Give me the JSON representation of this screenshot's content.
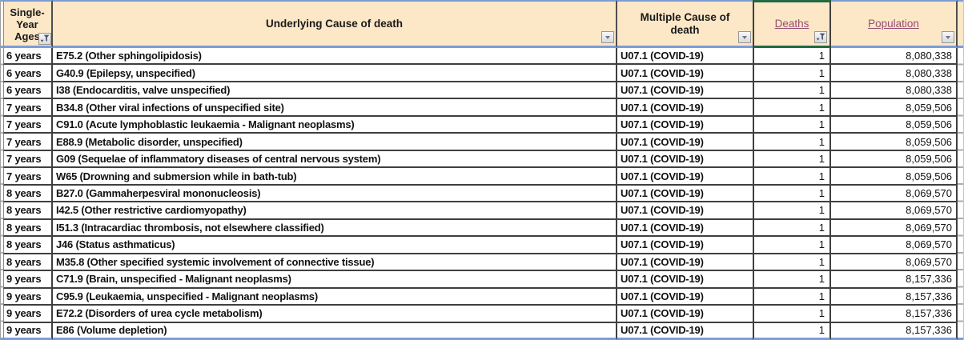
{
  "table": {
    "headers": [
      {
        "label": "Single-Year Ages",
        "filter": "applied",
        "hyperlink": false
      },
      {
        "label": "Underlying Cause of death",
        "filter": "dropdown",
        "hyperlink": false
      },
      {
        "label": "Multiple Cause of death",
        "filter": "dropdown",
        "hyperlink": false
      },
      {
        "label": "Deaths",
        "filter": "applied",
        "hyperlink": true
      },
      {
        "label": "Population",
        "filter": "dropdown",
        "hyperlink": true
      }
    ],
    "rows": [
      {
        "age": "6 years",
        "underlying_cause": "E75.2 (Other sphingolipidosis)",
        "multiple_cause": "U07.1 (COVID-19)",
        "deaths": "1",
        "population": "8,080,338"
      },
      {
        "age": "6 years",
        "underlying_cause": "G40.9 (Epilepsy, unspecified)",
        "multiple_cause": "U07.1 (COVID-19)",
        "deaths": "1",
        "population": "8,080,338"
      },
      {
        "age": "6 years",
        "underlying_cause": "I38 (Endocarditis, valve unspecified)",
        "multiple_cause": "U07.1 (COVID-19)",
        "deaths": "1",
        "population": "8,080,338"
      },
      {
        "age": "7 years",
        "underlying_cause": "B34.8 (Other viral infections of unspecified site)",
        "multiple_cause": "U07.1 (COVID-19)",
        "deaths": "1",
        "population": "8,059,506"
      },
      {
        "age": "7 years",
        "underlying_cause": "C91.0 (Acute lymphoblastic leukaemia - Malignant neoplasms)",
        "multiple_cause": "U07.1 (COVID-19)",
        "deaths": "1",
        "population": "8,059,506"
      },
      {
        "age": "7 years",
        "underlying_cause": "E88.9 (Metabolic disorder, unspecified)",
        "multiple_cause": "U07.1 (COVID-19)",
        "deaths": "1",
        "population": "8,059,506"
      },
      {
        "age": "7 years",
        "underlying_cause": "G09 (Sequelae of inflammatory diseases of central nervous system)",
        "multiple_cause": "U07.1 (COVID-19)",
        "deaths": "1",
        "population": "8,059,506"
      },
      {
        "age": "7 years",
        "underlying_cause": "W65 (Drowning and submersion while in bath-tub)",
        "multiple_cause": "U07.1 (COVID-19)",
        "deaths": "1",
        "population": "8,059,506"
      },
      {
        "age": "8 years",
        "underlying_cause": "B27.0 (Gammaherpesviral mononucleosis)",
        "multiple_cause": "U07.1 (COVID-19)",
        "deaths": "1",
        "population": "8,069,570"
      },
      {
        "age": "8 years",
        "underlying_cause": "I42.5 (Other restrictive cardiomyopathy)",
        "multiple_cause": "U07.1 (COVID-19)",
        "deaths": "1",
        "population": "8,069,570"
      },
      {
        "age": "8 years",
        "underlying_cause": "I51.3 (Intracardiac thrombosis, not elsewhere classified)",
        "multiple_cause": "U07.1 (COVID-19)",
        "deaths": "1",
        "population": "8,069,570"
      },
      {
        "age": "8 years",
        "underlying_cause": "J46 (Status asthmaticus)",
        "multiple_cause": "U07.1 (COVID-19)",
        "deaths": "1",
        "population": "8,069,570"
      },
      {
        "age": "8 years",
        "underlying_cause": "M35.8 (Other specified systemic involvement of connective tissue)",
        "multiple_cause": "U07.1 (COVID-19)",
        "deaths": "1",
        "population": "8,069,570"
      },
      {
        "age": "9 years",
        "underlying_cause": "C71.9 (Brain, unspecified - Malignant neoplasms)",
        "multiple_cause": "U07.1 (COVID-19)",
        "deaths": "1",
        "population": "8,157,336"
      },
      {
        "age": "9 years",
        "underlying_cause": "C95.9 (Leukaemia, unspecified - Malignant neoplasms)",
        "multiple_cause": "U07.1 (COVID-19)",
        "deaths": "1",
        "population": "8,157,336"
      },
      {
        "age": "9 years",
        "underlying_cause": "E72.2 (Disorders of urea cycle metabolism)",
        "multiple_cause": "U07.1 (COVID-19)",
        "deaths": "1",
        "population": "8,157,336"
      },
      {
        "age": "9 years",
        "underlying_cause": "E86 (Volume depletion)",
        "multiple_cause": "U07.1 (COVID-19)",
        "deaths": "1",
        "population": "8,157,336"
      }
    ]
  },
  "icons": {
    "filter_applied": "funnel-icon",
    "filter_dropdown": "chevron-down-icon"
  },
  "colors": {
    "header_fill": "#FCE7C7",
    "accent_blue": "#7E9CD7",
    "filter_active_green": "#1F6B42",
    "hyperlink": "#954F72",
    "gridline": "#3F3F3F"
  }
}
